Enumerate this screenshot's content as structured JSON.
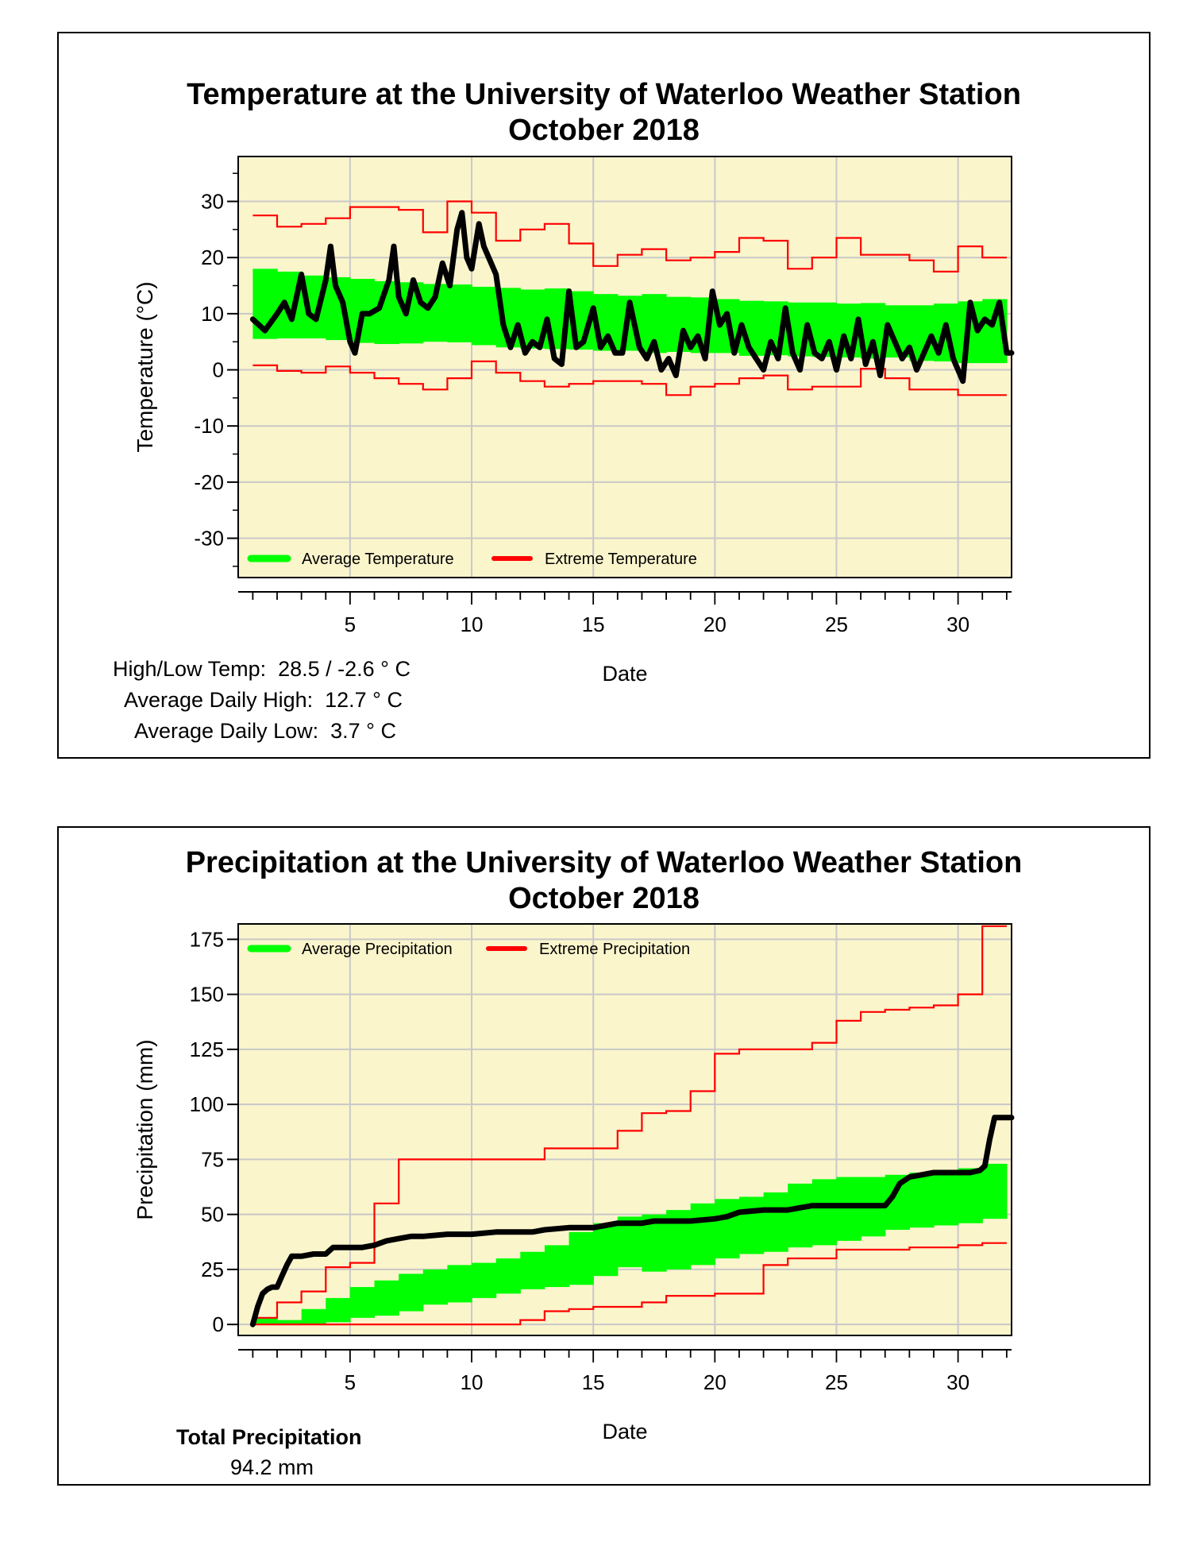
{
  "temperature_panel": {
    "title_line1": "Temperature at the University of Waterloo Weather Station",
    "title_line2": "October 2018",
    "stats": {
      "high_low": "High/Low Temp:  28.5 / -2.6 ° C",
      "avg_high": "Average Daily High:  12.7 ° C",
      "avg_low": "Average Daily Low:  3.7 ° C"
    }
  },
  "precipitation_panel": {
    "title_line1": "Precipitation at the University of Waterloo Weather Station",
    "title_line2": "October 2018",
    "total_label": "Total Precipitation",
    "total_value": "94.2 mm"
  },
  "colors": {
    "plot_bg": "#fbf5cc",
    "average": "#00ff00",
    "extreme": "#ff0000",
    "observed": "#000000",
    "grid": "#c8c8c8"
  },
  "chart_data": [
    {
      "type": "line",
      "title": "Temperature at the University of Waterloo Weather Station October 2018",
      "xlabel": "Date",
      "ylabel": "Temperature (°C)",
      "xlim": [
        0.4,
        32.2
      ],
      "ylim": [
        -37,
        38
      ],
      "xticks": [
        5,
        10,
        15,
        20,
        25,
        30
      ],
      "yticks": [
        -30,
        -20,
        -10,
        0,
        10,
        20,
        30
      ],
      "grid": true,
      "legend_position": "bottom-left",
      "legend": [
        "Average Temperature",
        "Extreme Temperature"
      ],
      "average_band": {
        "name": "Average Temperature",
        "days": [
          1,
          2,
          3,
          4,
          5,
          6,
          7,
          8,
          9,
          10,
          11,
          12,
          13,
          14,
          15,
          16,
          17,
          18,
          19,
          20,
          21,
          22,
          23,
          24,
          25,
          26,
          27,
          28,
          29,
          30,
          31,
          32
        ],
        "low": [
          5.5,
          5.6,
          5.6,
          5.3,
          4.8,
          4.6,
          4.7,
          5.0,
          4.9,
          4.4,
          4.0,
          3.8,
          3.7,
          3.6,
          3.4,
          3.4,
          3.0,
          3.2,
          3.0,
          3.0,
          2.5,
          2.6,
          2.4,
          2.3,
          2.2,
          2.0,
          2.2,
          1.6,
          1.5,
          1.2,
          1.2,
          1.2
        ],
        "high": [
          18.0,
          17.5,
          16.8,
          16.5,
          16.2,
          15.8,
          15.6,
          15.3,
          15.2,
          14.8,
          14.6,
          14.3,
          14.5,
          14.0,
          13.5,
          13.2,
          13.5,
          13.0,
          12.9,
          12.6,
          12.3,
          12.2,
          12.0,
          12.0,
          11.8,
          11.9,
          11.5,
          11.5,
          11.8,
          12.2,
          12.6,
          12.0
        ]
      },
      "extreme_high": {
        "name": "Extreme Temperature (max)",
        "days": [
          1,
          2,
          3,
          4,
          5,
          6,
          7,
          8,
          9,
          10,
          11,
          12,
          13,
          14,
          15,
          16,
          17,
          18,
          19,
          20,
          21,
          22,
          23,
          24,
          25,
          26,
          27,
          28,
          29,
          30,
          31,
          32
        ],
        "values": [
          27.5,
          25.5,
          26.0,
          27.0,
          29.0,
          29.0,
          28.5,
          24.5,
          30.0,
          28.0,
          23.0,
          25.0,
          26.0,
          22.5,
          18.5,
          20.5,
          21.5,
          19.5,
          20.0,
          21.0,
          23.5,
          23.0,
          18.0,
          20.0,
          23.5,
          20.5,
          20.5,
          19.5,
          17.5,
          22.0,
          20.0,
          19.5
        ]
      },
      "extreme_low": {
        "name": "Extreme Temperature (min)",
        "days": [
          1,
          2,
          3,
          4,
          5,
          6,
          7,
          8,
          9,
          10,
          11,
          12,
          13,
          14,
          15,
          16,
          17,
          18,
          19,
          20,
          21,
          22,
          23,
          24,
          25,
          26,
          27,
          28,
          29,
          30,
          31,
          32
        ],
        "values": [
          0.8,
          -0.2,
          -0.5,
          0.6,
          -0.5,
          -1.5,
          -2.5,
          -3.5,
          -1.5,
          1.5,
          -0.5,
          -2.0,
          -3.0,
          -2.5,
          -2.0,
          -2.0,
          -2.5,
          -4.5,
          -3.0,
          -2.5,
          -1.5,
          -1.0,
          -3.5,
          -3.0,
          -3.0,
          0.2,
          -1.5,
          -3.5,
          -3.5,
          -4.5,
          -4.5,
          -4.5
        ]
      },
      "observed": {
        "name": "Observed Temperature",
        "x": [
          1.0,
          1.5,
          2.0,
          2.3,
          2.6,
          3.0,
          3.3,
          3.6,
          4.0,
          4.2,
          4.4,
          4.7,
          5.0,
          5.2,
          5.5,
          5.8,
          6.2,
          6.6,
          6.8,
          7.0,
          7.3,
          7.6,
          7.9,
          8.2,
          8.5,
          8.8,
          9.1,
          9.4,
          9.6,
          9.8,
          10.0,
          10.3,
          10.5,
          10.7,
          11.0,
          11.3,
          11.6,
          11.9,
          12.2,
          12.5,
          12.8,
          13.1,
          13.4,
          13.7,
          14.0,
          14.3,
          14.6,
          15.0,
          15.3,
          15.6,
          15.9,
          16.2,
          16.5,
          16.9,
          17.2,
          17.5,
          17.8,
          18.1,
          18.4,
          18.7,
          19.0,
          19.3,
          19.6,
          19.9,
          20.2,
          20.5,
          20.8,
          21.1,
          21.4,
          21.7,
          22.0,
          22.3,
          22.6,
          22.9,
          23.2,
          23.5,
          23.8,
          24.1,
          24.4,
          24.7,
          25.0,
          25.3,
          25.6,
          25.9,
          26.2,
          26.5,
          26.8,
          27.1,
          27.4,
          27.7,
          28.0,
          28.3,
          28.6,
          28.9,
          29.2,
          29.5,
          29.8,
          30.0,
          30.2,
          30.5,
          30.8,
          31.1,
          31.4,
          31.7,
          32.0,
          32.2
        ],
        "y": [
          9,
          7,
          10,
          12,
          9,
          17,
          10,
          9,
          16,
          22,
          15,
          12,
          5,
          3,
          10,
          10,
          11,
          16,
          22,
          13,
          10,
          16,
          12,
          11,
          13,
          19,
          15,
          25,
          28,
          20,
          18,
          26,
          22,
          20,
          17,
          8,
          4,
          8,
          3,
          5,
          4,
          9,
          2,
          1,
          14,
          4,
          5,
          11,
          4,
          6,
          3,
          3,
          12,
          4,
          2,
          5,
          0,
          2,
          -1,
          7,
          4,
          6,
          2,
          14,
          8,
          10,
          3,
          8,
          4,
          2,
          0,
          5,
          2,
          11,
          3,
          0,
          8,
          3,
          2,
          5,
          0,
          6,
          2,
          9,
          1,
          5,
          -1,
          8,
          5,
          2,
          4,
          0,
          3,
          6,
          3,
          8,
          2,
          0,
          -2,
          12,
          7,
          9,
          8,
          12,
          3,
          3
        ]
      }
    },
    {
      "type": "line",
      "title": "Precipitation at the University of Waterloo Weather Station October 2018",
      "xlabel": "Date",
      "ylabel": "Precipitation (mm)",
      "xlim": [
        0.4,
        32.2
      ],
      "ylim": [
        -5,
        182
      ],
      "xticks": [
        5,
        10,
        15,
        20,
        25,
        30
      ],
      "yticks": [
        0,
        25,
        50,
        75,
        100,
        125,
        150,
        175
      ],
      "grid": true,
      "legend_position": "top-left",
      "legend": [
        "Average Precipitation",
        "Extreme Precipitation"
      ],
      "average_band": {
        "name": "Average Precipitation",
        "days": [
          1,
          2,
          3,
          4,
          5,
          6,
          7,
          8,
          9,
          10,
          11,
          12,
          13,
          14,
          15,
          16,
          17,
          18,
          19,
          20,
          21,
          22,
          23,
          24,
          25,
          26,
          27,
          28,
          29,
          30,
          31,
          32
        ],
        "low": [
          0,
          0,
          0,
          1,
          3,
          4,
          6,
          9,
          10,
          12,
          14,
          16,
          17,
          18,
          22,
          26,
          24,
          25,
          27,
          30,
          32,
          33,
          35,
          36,
          38,
          40,
          43,
          44,
          45,
          46,
          48,
          49
        ],
        "high": [
          3,
          2,
          7,
          12,
          17,
          20,
          23,
          25,
          27,
          28,
          30,
          33,
          36,
          42,
          46,
          49,
          50,
          52,
          55,
          57,
          58,
          60,
          64,
          66,
          67,
          67,
          68,
          69,
          70,
          71,
          73,
          73
        ]
      },
      "extreme_high": {
        "name": "Extreme Precipitation (max)",
        "days": [
          1,
          2,
          3,
          4,
          5,
          6,
          7,
          8,
          9,
          10,
          11,
          12,
          13,
          14,
          15,
          16,
          17,
          18,
          19,
          20,
          21,
          22,
          23,
          24,
          25,
          26,
          27,
          28,
          29,
          30,
          31,
          32
        ],
        "values": [
          3,
          10,
          15,
          26,
          28,
          55,
          75,
          75,
          75,
          75,
          75,
          75,
          80,
          80,
          80,
          88,
          96,
          97,
          106,
          123,
          125,
          125,
          125,
          128,
          138,
          142,
          143,
          144,
          145,
          150,
          181,
          181
        ]
      },
      "extreme_low": {
        "name": "Extreme Precipitation (min)",
        "days": [
          1,
          2,
          3,
          4,
          5,
          6,
          7,
          8,
          9,
          10,
          11,
          12,
          13,
          14,
          15,
          16,
          17,
          18,
          19,
          20,
          21,
          22,
          23,
          24,
          25,
          26,
          27,
          28,
          29,
          30,
          31,
          32
        ],
        "values": [
          0,
          0,
          0,
          0,
          0,
          0,
          0,
          0,
          0,
          0,
          0,
          2,
          6,
          7,
          8,
          8,
          10,
          13,
          13,
          14,
          14,
          27,
          30,
          30,
          34,
          34,
          34,
          35,
          35,
          36,
          37,
          37
        ]
      },
      "observed": {
        "name": "Observed Precipitation",
        "x": [
          1.0,
          1.2,
          1.4,
          1.6,
          1.8,
          2.0,
          2.2,
          2.4,
          2.6,
          3.0,
          3.5,
          4.0,
          4.3,
          4.8,
          5.5,
          6.0,
          6.5,
          7.0,
          7.5,
          8.0,
          9.0,
          10.0,
          11.0,
          12.0,
          12.5,
          13.0,
          14.0,
          15.0,
          15.5,
          16.0,
          17.0,
          17.5,
          18.0,
          19.0,
          20.0,
          20.5,
          21.0,
          22.0,
          23.0,
          23.5,
          24.0,
          25.0,
          26.0,
          27.0,
          27.3,
          27.6,
          28.0,
          28.5,
          29.0,
          30.0,
          30.5,
          30.9,
          31.1,
          31.3,
          31.5,
          32.0,
          32.2
        ],
        "y": [
          0,
          8,
          14,
          16,
          17,
          17,
          22,
          27,
          31,
          31,
          32,
          32,
          35,
          35,
          35,
          36,
          38,
          39,
          40,
          40,
          41,
          41,
          42,
          42,
          42,
          43,
          44,
          44,
          45,
          46,
          46,
          47,
          47,
          47,
          48,
          49,
          51,
          52,
          52,
          53,
          54,
          54,
          54,
          54,
          58,
          64,
          67,
          68,
          69,
          69,
          69,
          70,
          72,
          84,
          94,
          94,
          94
        ]
      }
    }
  ]
}
